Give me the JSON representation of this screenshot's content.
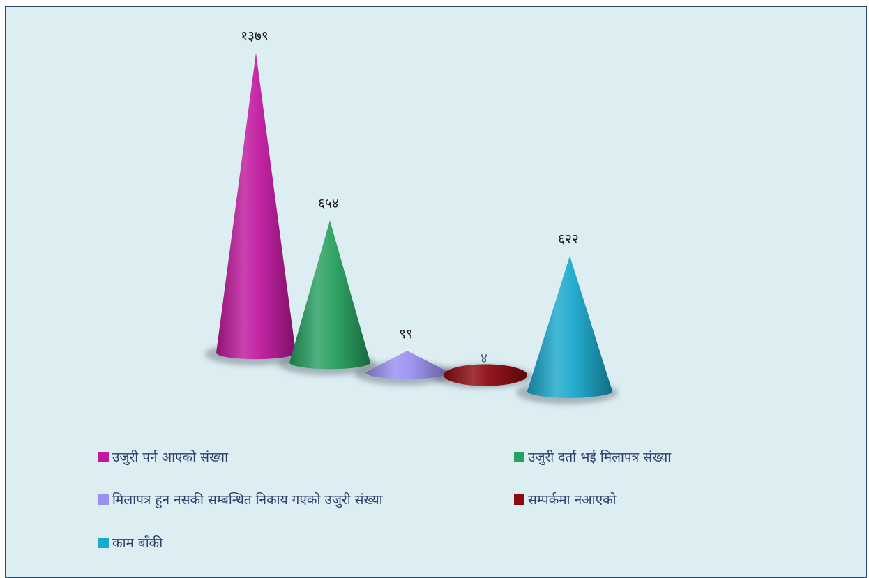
{
  "chart_data": {
    "type": "bar",
    "bar_shape": "3d-cone",
    "categories": [
      "उजुरी पर्न आएको संख्या",
      "उजुरी दर्ता भई मिलापत्र संख्या",
      "मिलापत्र हुन नसकी सम्बन्धित निकाय गएको उजुरी संख्या",
      "सम्पर्कमा नआएको",
      "काम बाँकी"
    ],
    "values": [
      1379,
      654,
      99,
      4,
      622
    ],
    "data_labels": [
      "१३७९",
      "६५४",
      "९९",
      "४",
      "६२२"
    ],
    "colors": [
      "#c0199f",
      "#27a060",
      "#9b8ff0",
      "#8c0a10",
      "#1aa8cc"
    ],
    "legend_position": "bottom",
    "grid": false,
    "axes_visible": false
  }
}
